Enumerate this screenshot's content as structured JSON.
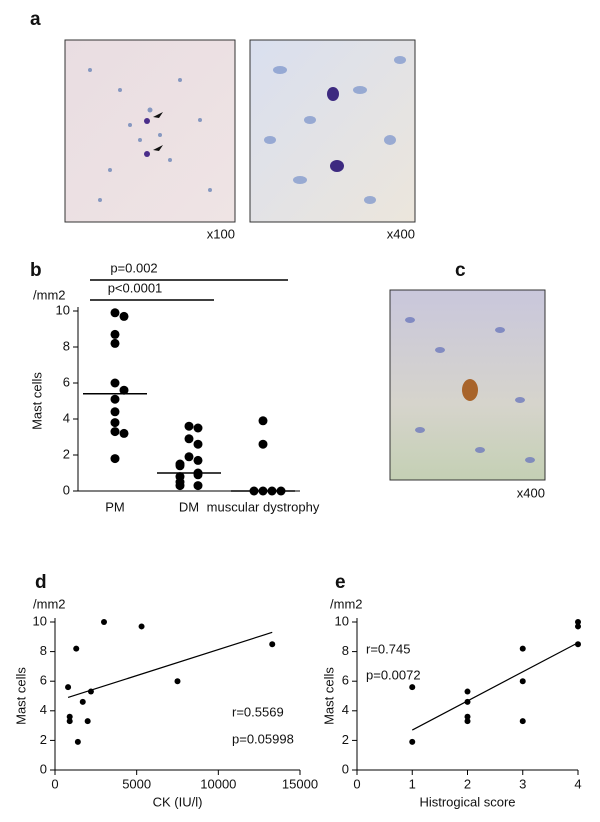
{
  "panels": [
    {
      "label": "a",
      "captions": [
        "x100",
        "x400"
      ]
    },
    {
      "label": "c",
      "captions": [
        "x400"
      ]
    }
  ],
  "chart_data": [
    {
      "type": "dot",
      "label": "b",
      "ylabel": "Mast cells",
      "yunit": "/mm2",
      "categories": [
        "PM",
        "DM",
        "muscular dystrophy"
      ],
      "values": [
        [
          9.9,
          9.7,
          8.7,
          8.2,
          6.0,
          5.6,
          5.1,
          4.4,
          3.8,
          3.3,
          3.2,
          1.8
        ],
        [
          3.6,
          3.5,
          2.9,
          2.6,
          1.9,
          1.7,
          1.5,
          1.4,
          1.0,
          0.9,
          0.8,
          0.5,
          0.3,
          0.3
        ],
        [
          3.9,
          2.6,
          0,
          0,
          0,
          0
        ]
      ],
      "medians": [
        5.4,
        1.0,
        0
      ],
      "color": "#000000",
      "ylim": [
        0,
        10
      ],
      "yticks": [
        0,
        2,
        4,
        6,
        8,
        10
      ],
      "brackets": [
        {
          "text": "p=0.002",
          "span": [
            0,
            2
          ]
        },
        {
          "text": "p<0.0001",
          "span": [
            0,
            1
          ]
        }
      ]
    },
    {
      "type": "scatter",
      "label": "d",
      "ylabel": "Mast cells",
      "yunit": "/mm2",
      "xlabel": "CK (IU/l)",
      "x": [
        3000,
        5300,
        13300,
        1300,
        7500,
        800,
        2200,
        1700,
        900,
        900,
        2000,
        1400
      ],
      "values": [
        10.0,
        9.7,
        8.5,
        8.2,
        6.0,
        5.6,
        5.3,
        4.6,
        3.6,
        3.3,
        3.3,
        1.9
      ],
      "fit": {
        "x": [
          800,
          13300
        ],
        "y": [
          4.9,
          9.3
        ]
      },
      "color": "#000000",
      "xlim": [
        0,
        15000
      ],
      "xticks": [
        0,
        5000,
        10000,
        15000
      ],
      "ylim": [
        0,
        10
      ],
      "yticks": [
        0,
        2,
        4,
        6,
        8,
        10
      ],
      "annotations": [
        "r=0.5569",
        "p=0.05998"
      ]
    },
    {
      "type": "scatter",
      "label": "e",
      "ylabel": "Mast cells",
      "yunit": "/mm2",
      "xlabel": "Histrogical score",
      "x": [
        4,
        4,
        4,
        3,
        3,
        3,
        2,
        2,
        2,
        2,
        1,
        1
      ],
      "values": [
        10.0,
        9.7,
        8.5,
        8.2,
        6.0,
        3.3,
        5.3,
        4.6,
        3.6,
        3.3,
        5.6,
        1.9
      ],
      "fit": {
        "x": [
          1,
          4
        ],
        "y": [
          2.7,
          8.6
        ]
      },
      "color": "#000000",
      "xlim": [
        0,
        4
      ],
      "xticks": [
        0,
        1,
        2,
        3,
        4
      ],
      "ylim": [
        0,
        10
      ],
      "yticks": [
        0,
        2,
        4,
        6,
        8,
        10
      ],
      "annotations": [
        "r=0.745",
        "p=0.0072"
      ]
    }
  ]
}
